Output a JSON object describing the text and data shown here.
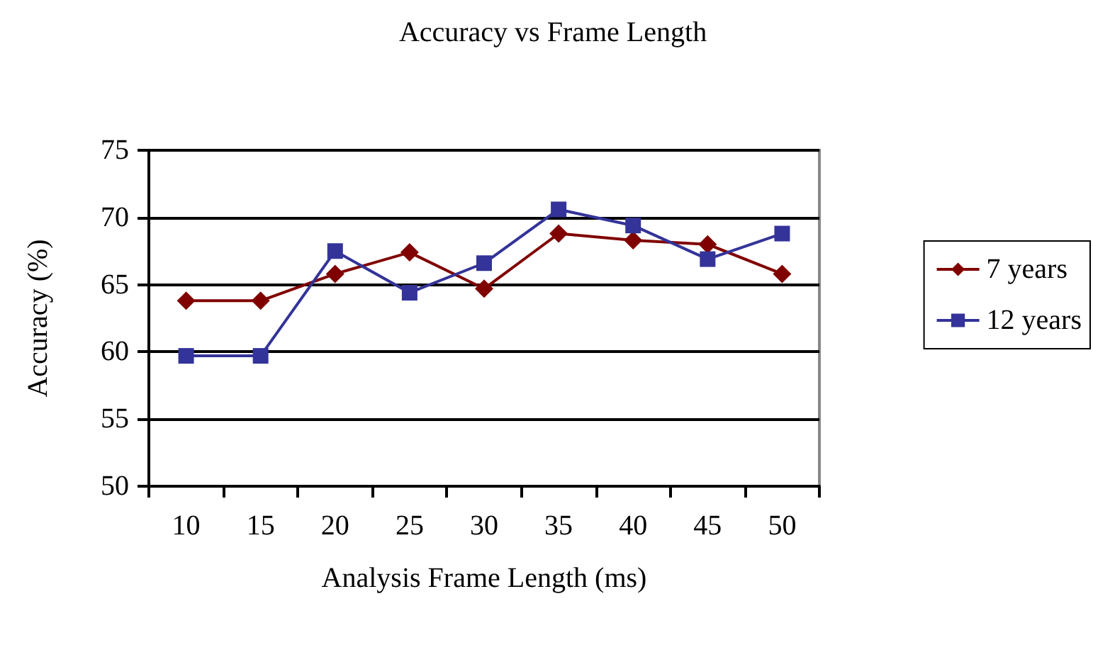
{
  "chart_data": {
    "type": "line",
    "title": "Accuracy vs Frame Length",
    "xlabel": "Analysis Frame Length (ms)",
    "ylabel": "Accuracy (%)",
    "categories": [
      "10",
      "15",
      "20",
      "25",
      "30",
      "35",
      "40",
      "45",
      "50"
    ],
    "series": [
      {
        "name": "7 years",
        "color": "#800000",
        "marker": "diamond",
        "values": [
          63.8,
          63.8,
          65.8,
          67.4,
          64.7,
          68.8,
          68.3,
          68.0,
          65.8
        ]
      },
      {
        "name": "12 years",
        "color": "#333399",
        "marker": "square",
        "values": [
          59.7,
          59.7,
          67.5,
          64.4,
          66.6,
          70.6,
          69.4,
          66.9,
          68.8
        ]
      }
    ],
    "ylim": [
      50,
      75
    ],
    "yticks": [
      50,
      55,
      60,
      65,
      70,
      75
    ],
    "grid": "y",
    "legend": "right",
    "line_style": "solid"
  }
}
